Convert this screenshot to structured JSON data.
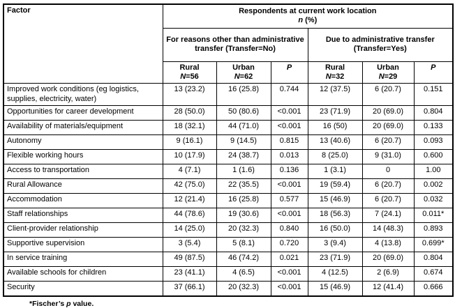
{
  "table": {
    "factor_header": "Factor",
    "main_title": "Respondents at current work location",
    "n_var": "n",
    "n_rest": " (%)",
    "group_no": "For reasons other than administrative transfer (Transfer=No)",
    "group_yes": "Due to administrative transfer (Transfer=Yes)",
    "cols": [
      {
        "loc": "Rural",
        "nvar": "N",
        "nval": "=56"
      },
      {
        "loc": "Urban",
        "nvar": "N",
        "nval": "=62"
      },
      {
        "p": "P"
      },
      {
        "loc": "Rural",
        "nvar": "N",
        "nval": "=32"
      },
      {
        "loc": "Urban",
        "nvar": "N",
        "nval": "=29"
      },
      {
        "p": "P"
      }
    ],
    "rows": [
      {
        "factor": "Improved work conditions (eg logistics, supplies, electricity, water)",
        "values": [
          "13 (23.2)",
          "16 (25.8)",
          "0.744",
          "12 (37.5)",
          "6 (20.7)",
          "0.151"
        ]
      },
      {
        "factor": "Opportunities for career development",
        "values": [
          "28 (50.0)",
          "50 (80.6)",
          "<0.001",
          "23 (71.9)",
          "20 (69.0)",
          "0.804"
        ]
      },
      {
        "factor": "Availability of materials/equipment",
        "values": [
          "18 (32.1)",
          "44 (71.0)",
          "<0.001",
          "16 (50)",
          "20 (69.0)",
          "0.133"
        ]
      },
      {
        "factor": "Autonomy",
        "values": [
          "9 (16.1)",
          "9 (14.5)",
          "0.815",
          "13 (40.6)",
          "6 (20.7)",
          "0.093"
        ]
      },
      {
        "factor": "Flexible working hours",
        "values": [
          "10 (17.9)",
          "24 (38.7)",
          "0.013",
          "8 (25.0)",
          "9 (31.0)",
          "0.600"
        ]
      },
      {
        "factor": "Access to transportation",
        "values": [
          "4 (7.1)",
          "1 (1.6)",
          "0.136",
          "1 (3.1)",
          "0",
          "1.00"
        ]
      },
      {
        "factor": "Rural Allowance",
        "values": [
          "42 (75.0)",
          "22 (35.5)",
          "<0.001",
          "19 (59.4)",
          "6 (20.7)",
          "0.002"
        ]
      },
      {
        "factor": "Accommodation",
        "values": [
          "12 (21.4)",
          "16 (25.8)",
          "0.577",
          "15 (46.9)",
          "6 (20.7)",
          "0.032"
        ]
      },
      {
        "factor": "Staff relationships",
        "values": [
          "44 (78.6)",
          "19 (30.6)",
          "<0.001",
          "18 (56.3)",
          "7 (24.1)",
          "0.011*"
        ]
      },
      {
        "factor": "Client-provider relationship",
        "values": [
          "14 (25.0)",
          "20 (32.3)",
          "0.840",
          "16 (50.0)",
          "14 (48.3)",
          "0.893"
        ]
      },
      {
        "factor": "Supportive supervision",
        "values": [
          "3 (5.4)",
          "5 (8.1)",
          "0.720",
          "3 (9.4)",
          "4 (13.8)",
          "0.699*"
        ]
      },
      {
        "factor": "In service training",
        "values": [
          "49 (87.5)",
          "46 (74.2)",
          "0.021",
          "23 (71.9)",
          "20 (69.0)",
          "0.804"
        ]
      },
      {
        "factor": "Available schools for children",
        "values": [
          "23 (41.1)",
          "4 (6.5)",
          "<0.001",
          "4 (12.5)",
          "2 (6.9)",
          "0.674"
        ]
      },
      {
        "factor": "Security",
        "values": [
          "37 (66.1)",
          "20 (32.3)",
          "<0.001",
          "15 (46.9)",
          "12 (41.4)",
          "0.666"
        ]
      }
    ]
  },
  "footnote": {
    "prefix": "*Fischer’s ",
    "p_var": "p",
    "suffix": " value."
  }
}
